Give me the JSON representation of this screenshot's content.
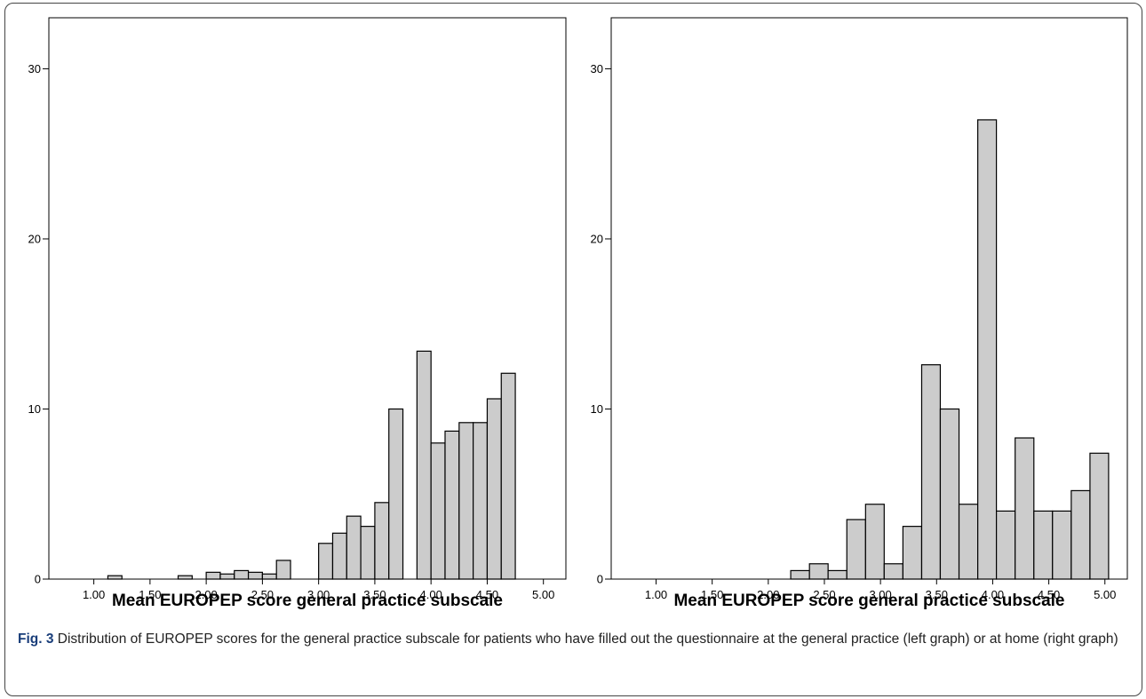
{
  "chart_data": [
    {
      "type": "bar",
      "panel": "left",
      "xlabel": "Mean EUROPEP score general practice subscale",
      "ylabel": "",
      "xlim": [
        0.6,
        5.2
      ],
      "ylim": [
        0,
        33
      ],
      "bin_width": 0.125,
      "xticks": [
        1.0,
        1.5,
        2.0,
        2.5,
        3.0,
        3.5,
        4.0,
        4.5,
        5.0
      ],
      "xtick_labels": [
        "1.00",
        "1.50",
        "2.00",
        "2.50",
        "3.00",
        "3.50",
        "4.00",
        "4.50",
        "5.00"
      ],
      "yticks": [
        0,
        10,
        20,
        30
      ],
      "ytick_labels": [
        "0",
        "10",
        "20",
        "30"
      ],
      "bins": [
        {
          "x0": 1.125,
          "x1": 1.25,
          "value": 0.2
        },
        {
          "x0": 1.75,
          "x1": 1.875,
          "value": 0.2
        },
        {
          "x0": 2.0,
          "x1": 2.125,
          "value": 0.4
        },
        {
          "x0": 2.125,
          "x1": 2.25,
          "value": 0.3
        },
        {
          "x0": 2.25,
          "x1": 2.375,
          "value": 0.5
        },
        {
          "x0": 2.375,
          "x1": 2.5,
          "value": 0.4
        },
        {
          "x0": 2.5,
          "x1": 2.625,
          "value": 0.3
        },
        {
          "x0": 2.625,
          "x1": 2.75,
          "value": 1.1
        },
        {
          "x0": 3.0,
          "x1": 3.125,
          "value": 2.1
        },
        {
          "x0": 3.125,
          "x1": 3.25,
          "value": 2.7
        },
        {
          "x0": 3.25,
          "x1": 3.375,
          "value": 3.7
        },
        {
          "x0": 3.375,
          "x1": 3.5,
          "value": 3.1
        },
        {
          "x0": 3.5,
          "x1": 3.625,
          "value": 4.5
        },
        {
          "x0": 3.625,
          "x1": 3.75,
          "value": 10.0
        },
        {
          "x0": 3.875,
          "x1": 4.0,
          "value": 13.4
        },
        {
          "x0": 4.0,
          "x1": 4.125,
          "value": 8.0
        },
        {
          "x0": 4.125,
          "x1": 4.25,
          "value": 8.7
        },
        {
          "x0": 4.25,
          "x1": 4.375,
          "value": 9.2
        },
        {
          "x0": 4.375,
          "x1": 4.5,
          "value": 9.2
        },
        {
          "x0": 4.5,
          "x1": 4.625,
          "value": 10.6
        },
        {
          "x0": 4.625,
          "x1": 4.75,
          "value": 12.1
        }
      ]
    },
    {
      "type": "bar",
      "panel": "right",
      "xlabel": "Mean EUROPEP score general practice subscale",
      "ylabel": "",
      "xlim": [
        0.6,
        5.2
      ],
      "ylim": [
        0,
        33
      ],
      "bin_width": 0.167,
      "xticks": [
        1.0,
        1.5,
        2.0,
        2.5,
        3.0,
        3.5,
        4.0,
        4.5,
        5.0
      ],
      "xtick_labels": [
        "1.00",
        "1.50",
        "2.00",
        "2.50",
        "3.00",
        "3.50",
        "4.00",
        "4.50",
        "5.00"
      ],
      "yticks": [
        0,
        10,
        20,
        30
      ],
      "ytick_labels": [
        "0",
        "10",
        "20",
        "30"
      ],
      "bins": [
        {
          "x0": 2.2,
          "x1": 2.367,
          "value": 0.5
        },
        {
          "x0": 2.367,
          "x1": 2.533,
          "value": 0.9
        },
        {
          "x0": 2.533,
          "x1": 2.7,
          "value": 0.5
        },
        {
          "x0": 2.7,
          "x1": 2.867,
          "value": 3.5
        },
        {
          "x0": 2.867,
          "x1": 3.033,
          "value": 4.4
        },
        {
          "x0": 3.033,
          "x1": 3.2,
          "value": 0.9
        },
        {
          "x0": 3.2,
          "x1": 3.367,
          "value": 3.1
        },
        {
          "x0": 3.367,
          "x1": 3.533,
          "value": 12.6
        },
        {
          "x0": 3.533,
          "x1": 3.7,
          "value": 10.0
        },
        {
          "x0": 3.7,
          "x1": 3.867,
          "value": 4.4
        },
        {
          "x0": 3.867,
          "x1": 4.033,
          "value": 27.0
        },
        {
          "x0": 4.033,
          "x1": 4.2,
          "value": 4.0
        },
        {
          "x0": 4.2,
          "x1": 4.367,
          "value": 8.3
        },
        {
          "x0": 4.367,
          "x1": 4.533,
          "value": 4.0
        },
        {
          "x0": 4.533,
          "x1": 4.7,
          "value": 4.0
        },
        {
          "x0": 4.7,
          "x1": 4.867,
          "value": 5.2
        },
        {
          "x0": 4.867,
          "x1": 5.033,
          "value": 7.4
        }
      ]
    }
  ],
  "caption": {
    "label": "Fig. 3",
    "text": " Distribution of EUROPEP scores for the general practice subscale for patients who have filled out the questionnaire at the general practice (left graph) or at home (right graph)"
  },
  "colors": {
    "bar_fill": "#cccccc",
    "bar_stroke": "#000000",
    "caption_label": "#1a3e7a"
  }
}
